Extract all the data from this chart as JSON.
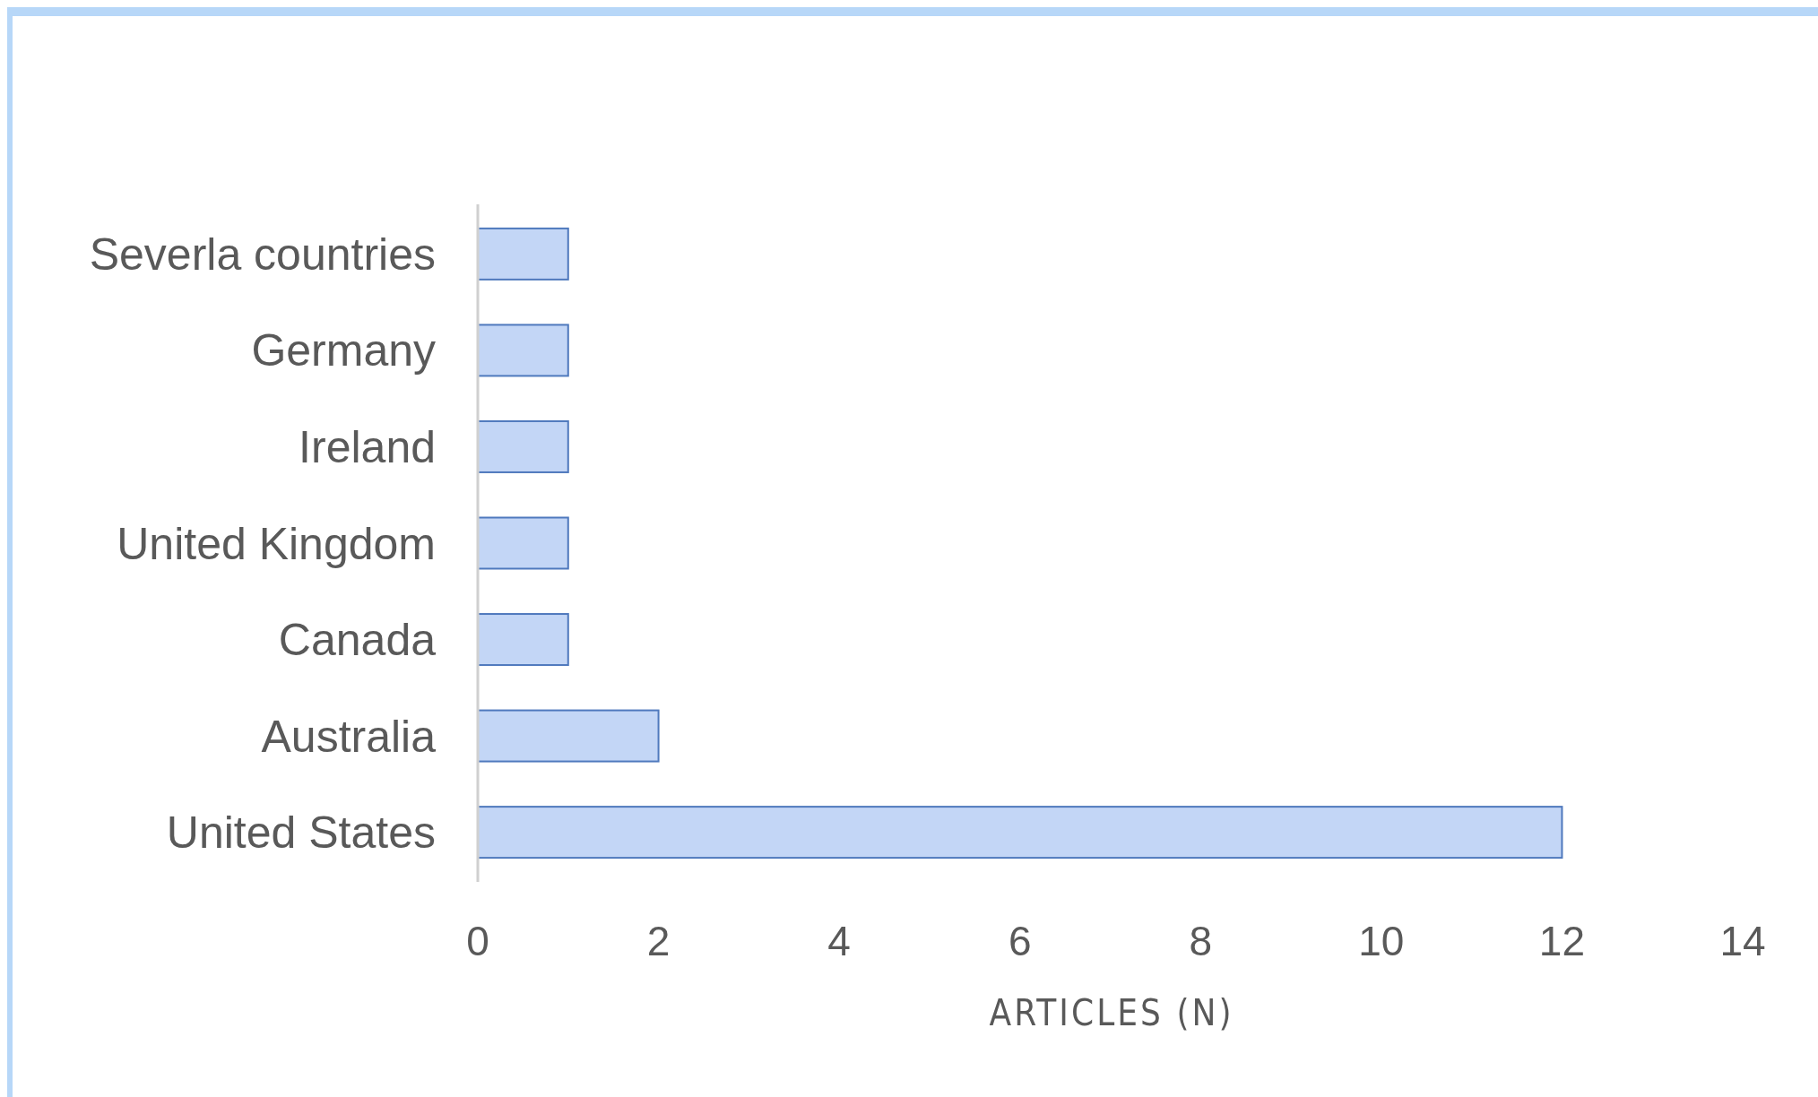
{
  "chart_data": {
    "type": "bar",
    "orientation": "horizontal",
    "xlabel": "ARTICLES (N)",
    "categories": [
      "Severla countries",
      "Germany",
      "Ireland",
      "United Kingdom",
      "Canada",
      "Australia",
      "United States"
    ],
    "values": [
      1,
      1,
      1,
      1,
      1,
      2,
      12
    ],
    "color": "#c3d6f6",
    "xlim": [
      0,
      14
    ],
    "xticks": [
      0,
      2,
      4,
      6,
      8,
      10,
      12,
      14
    ],
    "grid": false
  }
}
